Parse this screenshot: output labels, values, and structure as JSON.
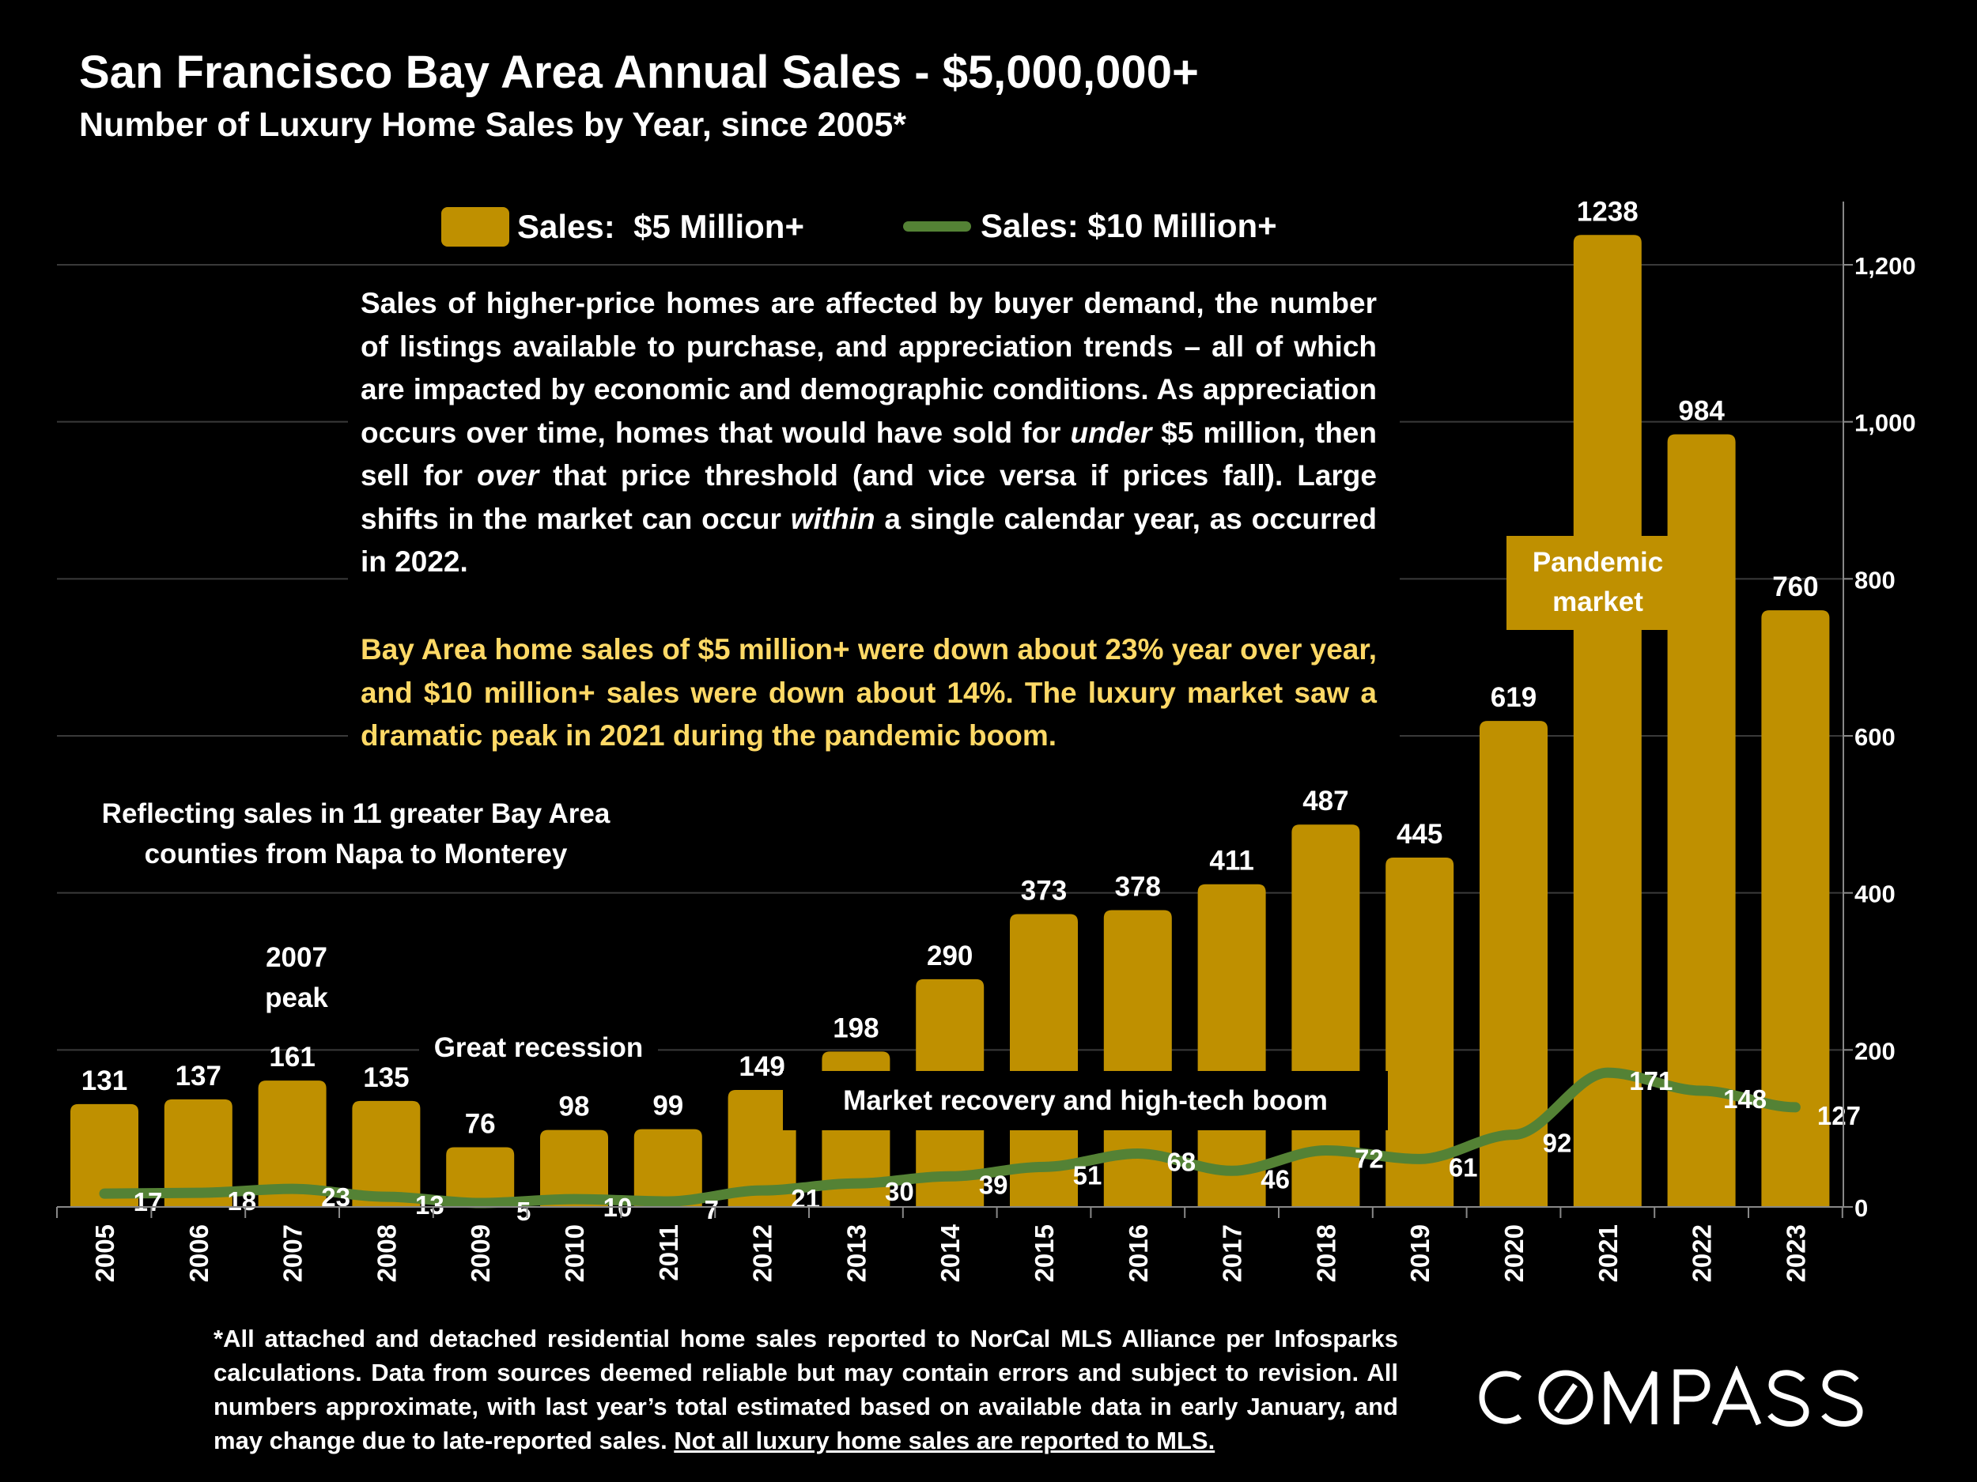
{
  "title": "San Francisco Bay Area Annual Sales - $5,000,000+",
  "subtitle": "Number of Luxury Home Sales by Year, since 2005*",
  "legend": {
    "bar": "Sales:  $5 Million+",
    "line": "Sales: $10 Million+"
  },
  "text_box": {
    "paragraph1_parts": [
      "Sales of higher-price homes are affected by buyer demand, the number of listings available to purchase, and appreciation trends – all of which are impacted by economic and demographic conditions. As appreciation occurs over time, homes that would have sold for ",
      "under",
      " $5 million, then sell for ",
      "over",
      " that price threshold (and vice versa if prices fall). Large shifts in the market can occur ",
      "within",
      " a single calendar year, as occurred in 2022."
    ],
    "paragraph2": "Bay Area home sales of $5 million+ were down about 23% year over year, and $10 million+ sales were down about 14%. The luxury market saw a dramatic peak in 2021 during the pandemic boom."
  },
  "annotations": {
    "reflecting": "Reflecting sales in 11 greater Bay Area counties from Napa to Monterey",
    "peak_2007": "2007 peak",
    "recession": "Great recession",
    "recovery": "Market recovery and high-tech boom",
    "pandemic": "Pandemic market"
  },
  "footnote": {
    "text": "*All attached and detached residential home sales reported to NorCal MLS Alliance per Infosparks calculations. Data from sources deemed reliable but may contain errors and subject to revision. All numbers approximate, with last year’s total estimated based on available data in early January, and may change due to late-reported sales. ",
    "underlined": "Not all luxury home sales are reported to MLS."
  },
  "logo": "COMPASS",
  "colors": {
    "bar": "#bf9000",
    "line": "#548235",
    "highlight_text": "#ffd966",
    "background": "#000000"
  },
  "chart_data": {
    "type": "bar",
    "categories": [
      "2005",
      "2006",
      "2007",
      "2008",
      "2009",
      "2010",
      "2011",
      "2012",
      "2013",
      "2014",
      "2015",
      "2016",
      "2017",
      "2018",
      "2019",
      "2020",
      "2021",
      "2022",
      "2023"
    ],
    "series": [
      {
        "name": "Sales:  $5 Million+",
        "type": "bar",
        "values": [
          131,
          137,
          161,
          135,
          76,
          98,
          99,
          149,
          198,
          290,
          373,
          378,
          411,
          487,
          445,
          619,
          1238,
          984,
          760
        ]
      },
      {
        "name": "Sales: $10 Million+",
        "type": "line",
        "values": [
          17,
          18,
          23,
          13,
          5,
          10,
          7,
          21,
          30,
          39,
          51,
          68,
          46,
          72,
          61,
          92,
          171,
          148,
          127
        ]
      }
    ],
    "y_axis": {
      "position": "right",
      "ylim": [
        0,
        1200
      ],
      "ticks": [
        0,
        200,
        400,
        600,
        800,
        1000,
        1200
      ],
      "tick_labels": [
        "0",
        "200",
        "400",
        "600",
        "800",
        "1,000",
        "1,200"
      ]
    },
    "grid": true,
    "legend_position": "top",
    "data_labels": true
  }
}
